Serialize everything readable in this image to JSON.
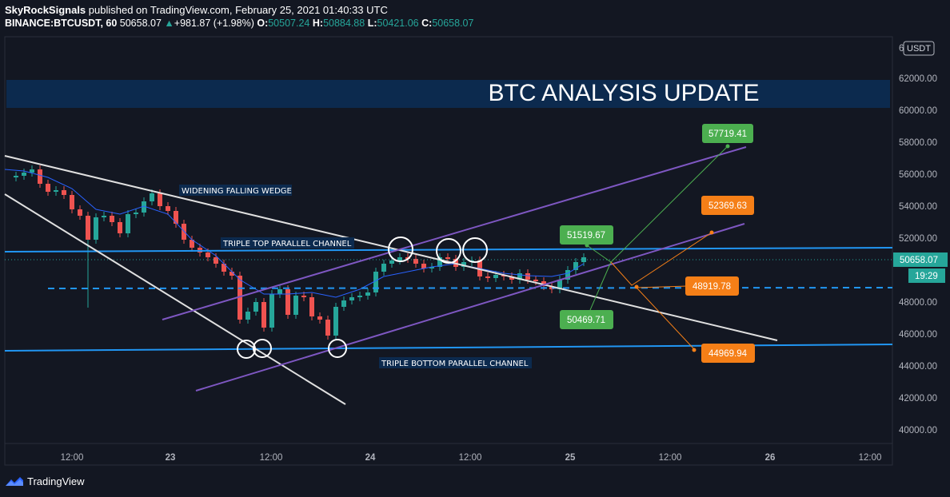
{
  "header": {
    "line1_author": "SkyRockSignals",
    "line1_rest": " published on TradingView.com, February 25, 2021 01:40:33 UTC",
    "symbol": "BINANCE:BTCUSDT, 60",
    "last": "50658.07",
    "change_arrow": "▲",
    "change": "+981.87 (+1.98%)",
    "o_label": "O:",
    "o": "50507.24",
    "h_label": "H:",
    "h": "50884.88",
    "l_label": "L:",
    "l": "50421.06",
    "c_label": "C:",
    "c": "50658.07"
  },
  "banner": {
    "text": "BTC ANALYSIS UPDATE",
    "color": "#0c2a4e"
  },
  "price_axis": {
    "currency": "USDT",
    "labels": [
      "62000.00",
      "60000.00",
      "58000.00",
      "56000.00",
      "54000.00",
      "52000.00",
      "50000.00",
      "48000.00",
      "46000.00",
      "44000.00",
      "42000.00",
      "40000.00"
    ],
    "top_cut_label": "6",
    "current_price": "50658.07",
    "countdown": "19:29"
  },
  "time_axis": {
    "labels": [
      "12:00",
      "23",
      "12:00",
      "24",
      "12:00",
      "25",
      "12:00",
      "26",
      "12:00"
    ]
  },
  "annotations": {
    "wedge": "WIDENING FALLING WEDGE",
    "triple_top": "TRIPLE TOP PARALLEL CHANNEL",
    "triple_bottom": "TRIPLE BOTTOM PARALLEL CHANNEL"
  },
  "targets": {
    "t57719": "57719.41",
    "t52369": "52369.63",
    "t51519": "51519.67",
    "t48919": "48919.78",
    "t50469": "50469.71",
    "t44969": "44969.94"
  },
  "colors": {
    "up": "#26a69a",
    "down": "#ef5350",
    "green_box": "#4caf50",
    "orange_box": "#f57f17",
    "horizontal": "#2196f3",
    "channel": "#7e57c2"
  },
  "chart_data": {
    "type": "candlestick",
    "symbol": "BTCUSDT",
    "ylim": [
      39000,
      63000
    ],
    "horizontal_levels": [
      51400,
      48900,
      45000
    ],
    "targets": [
      57719.41,
      52369.63,
      51519.67,
      48919.78,
      50469.71,
      44969.94
    ]
  },
  "footer": {
    "brand": "TradingView"
  }
}
